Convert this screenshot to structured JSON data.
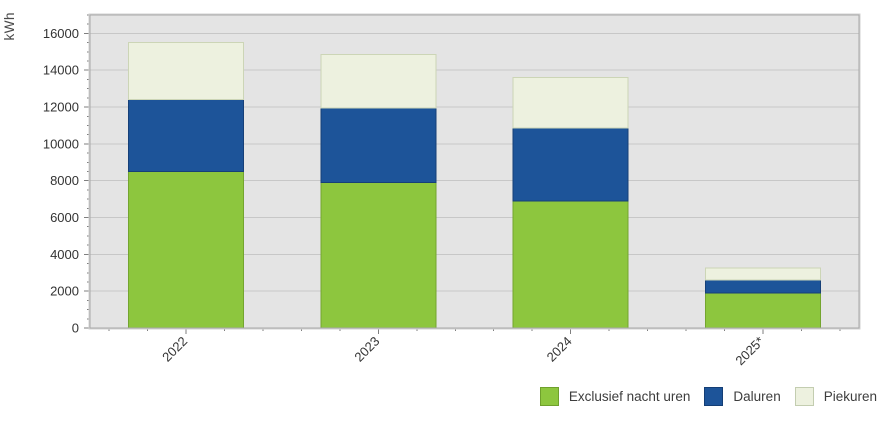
{
  "chart_data": {
    "type": "bar",
    "stacked": true,
    "ylabel": "kWh",
    "categories": [
      "2022",
      "2023",
      "2024",
      "2025*"
    ],
    "series": [
      {
        "name": "Exclusief nacht uren",
        "color": "#8dc63e",
        "border": "#74a52f",
        "values": [
          8500,
          7900,
          6900,
          1900
        ]
      },
      {
        "name": "Daluren",
        "color": "#1d5499",
        "border": "#164078",
        "values": [
          3900,
          4050,
          3950,
          700
        ]
      },
      {
        "name": "Piekuren",
        "color": "#edf1df",
        "border": "#ccd5b6",
        "values": [
          3100,
          2900,
          2750,
          650
        ]
      }
    ],
    "ylim": [
      0,
      17000
    ],
    "yticks": [
      0,
      2000,
      4000,
      6000,
      8000,
      10000,
      12000,
      14000,
      16000
    ],
    "y_minor_step": 500,
    "grid": true,
    "legend_position": "bottom-right",
    "colors": {
      "background": "#ffffff",
      "plot_bg": "#e4e4e4",
      "grid": "#c7c7c7",
      "plot_border": "#a8a8a8",
      "plot_border_outer": "#d2d2d2",
      "tick": "#7f7f7f",
      "tick_text": "#333333",
      "axis_title_text": "#4a4a4a",
      "legend_text": "#3d3d3d"
    }
  },
  "legend": {
    "items": [
      {
        "label": "Exclusief nacht uren",
        "color": "#8dc63e",
        "border": "#6fa02c"
      },
      {
        "label": "Daluren",
        "color": "#1d5499",
        "border": "#143e75"
      },
      {
        "label": "Piekuren",
        "color": "#edf1df",
        "border": "#c3cdb0"
      }
    ]
  }
}
